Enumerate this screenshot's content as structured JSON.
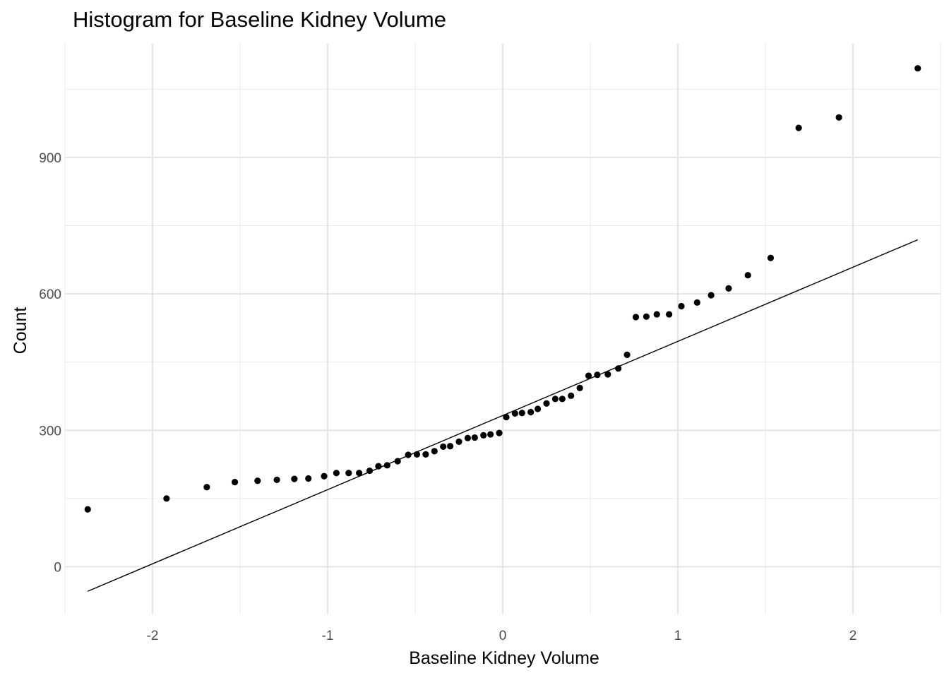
{
  "chart_data": {
    "type": "scatter",
    "title": "Histogram for Baseline Kidney Volume",
    "xlabel": "Baseline Kidney Volume",
    "ylabel": "Count",
    "xlim": [
      -2.5,
      2.5
    ],
    "ylim": [
      -105,
      1150
    ],
    "x_ticks": [
      -2,
      -1,
      0,
      1,
      2
    ],
    "x_tick_labels": [
      "-2",
      "-1",
      "0",
      "1",
      "2"
    ],
    "y_ticks": [
      0,
      300,
      600,
      900
    ],
    "y_tick_labels": [
      "0",
      "300",
      "600",
      "900"
    ],
    "grid": true,
    "point_color": "#000000",
    "line_color": "#000000",
    "reference_line": {
      "x": [
        -2.37,
        2.37
      ],
      "y": [
        -54,
        719
      ]
    },
    "points": {
      "x": [
        -2.37,
        -1.92,
        -1.69,
        -1.53,
        -1.4,
        -1.29,
        -1.19,
        -1.11,
        -1.02,
        -0.95,
        -0.88,
        -0.82,
        -0.76,
        -0.71,
        -0.66,
        -0.6,
        -0.54,
        -0.49,
        -0.44,
        -0.39,
        -0.34,
        -0.3,
        -0.25,
        -0.2,
        -0.16,
        -0.11,
        -0.07,
        -0.02,
        0.02,
        0.07,
        0.11,
        0.16,
        0.2,
        0.25,
        0.3,
        0.34,
        0.39,
        0.44,
        0.49,
        0.54,
        0.6,
        0.66,
        0.71,
        0.76,
        0.82,
        0.88,
        0.95,
        1.02,
        1.11,
        1.19,
        1.29,
        1.4,
        1.53,
        1.69,
        1.92,
        2.37
      ],
      "y": [
        126,
        150,
        175,
        186,
        189,
        191,
        193,
        194,
        199,
        206,
        206,
        206,
        211,
        221,
        223,
        232,
        246,
        247,
        247,
        254,
        264,
        265,
        275,
        283,
        284,
        289,
        291,
        294,
        329,
        337,
        338,
        340,
        347,
        359,
        369,
        369,
        376,
        393,
        420,
        422,
        423,
        436,
        466,
        549,
        550,
        555,
        555,
        573,
        581,
        597,
        612,
        641,
        679,
        965,
        988,
        1096
      ]
    }
  }
}
